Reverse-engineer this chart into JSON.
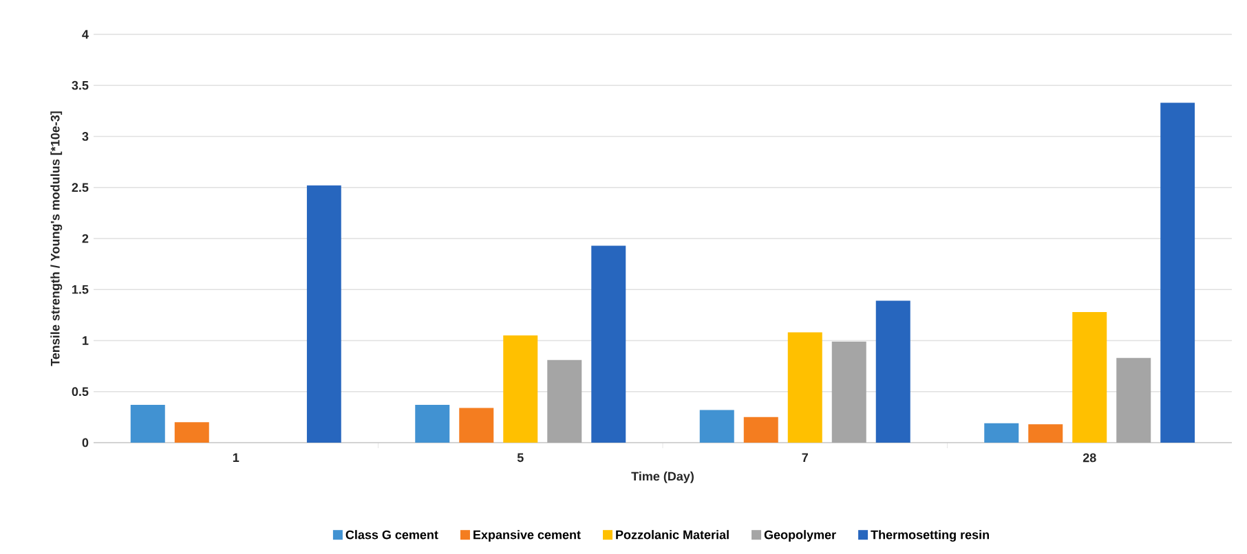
{
  "chart_data": {
    "type": "bar",
    "xlabel": "Time (Day)",
    "ylabel": "Tensile strength / Young's modulus [*10e-3]",
    "categories": [
      "1",
      "5",
      "7",
      "28"
    ],
    "series": [
      {
        "name": "Class G cement",
        "color": "#4192d2",
        "values": [
          0.37,
          0.37,
          0.32,
          0.19
        ]
      },
      {
        "name": "Expansive cement",
        "color": "#f47d20",
        "values": [
          0.2,
          0.34,
          0.25,
          0.18
        ]
      },
      {
        "name": "Pozzolanic  Material",
        "color": "#ffc000",
        "values": [
          null,
          1.05,
          1.08,
          1.28
        ]
      },
      {
        "name": "Geopolymer",
        "color": "#a5a5a5",
        "values": [
          null,
          0.81,
          0.99,
          0.83
        ]
      },
      {
        "name": "Thermosetting resin",
        "color": "#2766be",
        "values": [
          2.52,
          1.93,
          1.39,
          3.33
        ]
      }
    ],
    "ylim": [
      0,
      4
    ],
    "yticks": [
      0,
      0.5,
      1,
      1.5,
      2,
      2.5,
      3,
      3.5,
      4
    ],
    "grid": "y",
    "legend": "bottom"
  }
}
